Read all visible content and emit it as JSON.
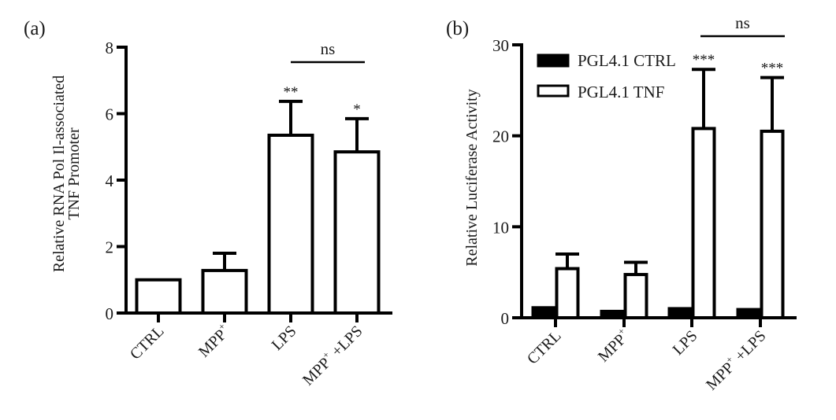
{
  "chart_data": [
    {
      "type": "bar",
      "panel_label": "(a)",
      "categories": [
        "CTRL",
        "MPP+",
        "LPS",
        "MPP+ +LPS"
      ],
      "category_labels": [
        {
          "main": "CTRL",
          "sup": "",
          "tail": ""
        },
        {
          "main": "MPP",
          "sup": "+",
          "tail": ""
        },
        {
          "main": "LPS",
          "sup": "",
          "tail": ""
        },
        {
          "main": "MPP",
          "sup": "+",
          "tail": " +LPS"
        }
      ],
      "series": [
        {
          "name": "",
          "fill": "#ffffff",
          "values": [
            1.0,
            1.28,
            5.35,
            4.85
          ],
          "errors": [
            0,
            0.52,
            1.02,
            1.0
          ]
        }
      ],
      "ylabel_lines": [
        "Relative RNA Pol Il-associated",
        "TNF Promoter"
      ],
      "ylim": [
        0,
        8
      ],
      "yticks": [
        0,
        2,
        4,
        6,
        8
      ],
      "ytick_labels": [
        "0",
        "2",
        "4",
        "6",
        "8"
      ],
      "significance": [
        "",
        "",
        "**",
        "*"
      ],
      "bracket": {
        "from": 2,
        "to": 3,
        "label": "ns"
      },
      "grid": false,
      "legend": null
    },
    {
      "type": "bar",
      "panel_label": "(b)",
      "categories": [
        "CTRL",
        "MPP+",
        "LPS",
        "MPP+ +LPS"
      ],
      "category_labels": [
        {
          "main": "CTRL",
          "sup": "",
          "tail": ""
        },
        {
          "main": "MPP",
          "sup": "+",
          "tail": ""
        },
        {
          "main": "LPS",
          "sup": "",
          "tail": ""
        },
        {
          "main": "MPP",
          "sup": "+",
          "tail": " +LPS"
        }
      ],
      "series": [
        {
          "name": "PGL4.1 CTRL",
          "fill": "#000000",
          "values": [
            1.1,
            0.7,
            1.0,
            0.9
          ],
          "errors": [
            0,
            0,
            0,
            0
          ]
        },
        {
          "name": "PGL4.1 TNF",
          "fill": "#ffffff",
          "values": [
            5.4,
            4.75,
            20.8,
            20.5
          ],
          "errors": [
            1.6,
            1.35,
            6.5,
            5.9
          ]
        }
      ],
      "ylabel_lines": [
        "Relative Luciferase Activity"
      ],
      "ylim": [
        0,
        30
      ],
      "yticks": [
        0,
        10,
        20,
        30
      ],
      "ytick_labels": [
        "0",
        "10",
        "20",
        "30"
      ],
      "significance": [
        "",
        "",
        "***",
        "***"
      ],
      "bracket": {
        "from": 2,
        "to": 3,
        "label": "ns"
      },
      "grid": false,
      "legend": "top-left"
    }
  ]
}
